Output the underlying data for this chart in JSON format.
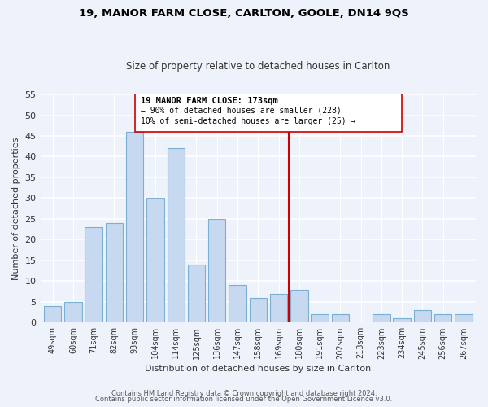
{
  "title1": "19, MANOR FARM CLOSE, CARLTON, GOOLE, DN14 9QS",
  "title2": "Size of property relative to detached houses in Carlton",
  "xlabel": "Distribution of detached houses by size in Carlton",
  "ylabel": "Number of detached properties",
  "bar_labels": [
    "49sqm",
    "60sqm",
    "71sqm",
    "82sqm",
    "93sqm",
    "104sqm",
    "114sqm",
    "125sqm",
    "136sqm",
    "147sqm",
    "158sqm",
    "169sqm",
    "180sqm",
    "191sqm",
    "202sqm",
    "213sqm",
    "223sqm",
    "234sqm",
    "245sqm",
    "256sqm",
    "267sqm"
  ],
  "bar_values": [
    4,
    5,
    23,
    24,
    46,
    30,
    42,
    14,
    25,
    9,
    6,
    7,
    8,
    2,
    2,
    0,
    2,
    1,
    3,
    2,
    2
  ],
  "bar_color": "#c6d9f0",
  "bar_edge_color": "#7bafd4",
  "annotation_label": "19 MANOR FARM CLOSE: 173sqm",
  "annotation_line1": "← 90% of detached houses are smaller (228)",
  "annotation_line2": "10% of semi-detached houses are larger (25) →",
  "marker_color": "#cc0000",
  "ylim": [
    0,
    55
  ],
  "yticks": [
    0,
    5,
    10,
    15,
    20,
    25,
    30,
    35,
    40,
    45,
    50,
    55
  ],
  "footer1": "Contains HM Land Registry data © Crown copyright and database right 2024.",
  "footer2": "Contains public sector information licensed under the Open Government Licence v3.0.",
  "background_color": "#eef2fa"
}
